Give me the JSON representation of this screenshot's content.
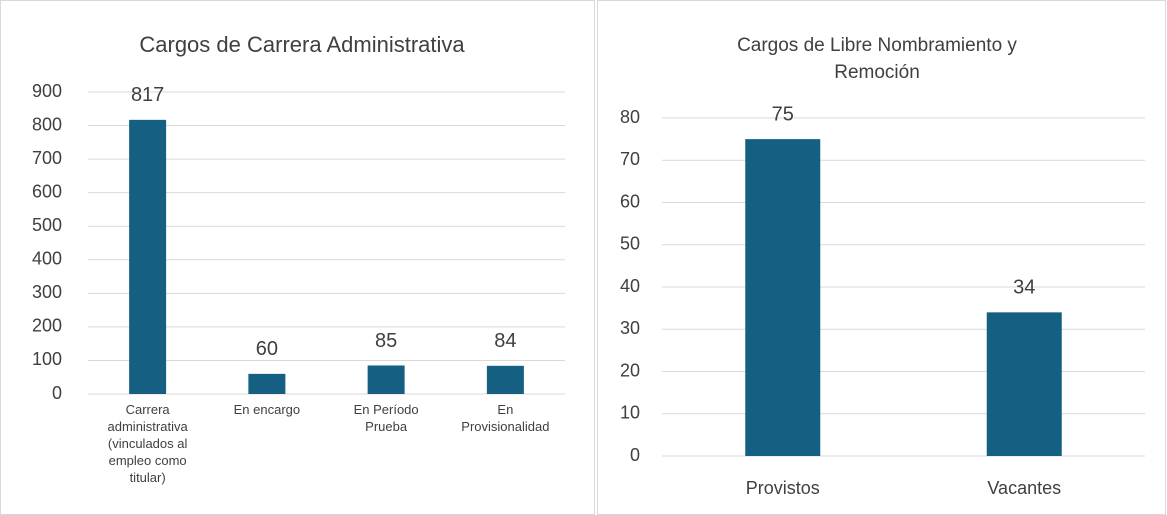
{
  "chart_data": [
    {
      "type": "bar",
      "title": "Cargos de Carrera Administrativa",
      "categories": [
        "Carrera administrativa (vinculados al empleo como titular)",
        "En encargo",
        "En Período Prueba",
        "En Provisionalidad"
      ],
      "values": [
        817,
        60,
        85,
        84
      ],
      "color": "#156082",
      "ylim": [
        0,
        900
      ],
      "yticks": [
        0,
        100,
        200,
        300,
        400,
        500,
        600,
        700,
        800,
        900
      ],
      "grid": true
    },
    {
      "type": "bar",
      "title": "Cargos de Libre Nombramiento y Remoción",
      "categories": [
        "Provistos",
        "Vacantes"
      ],
      "values": [
        75,
        34
      ],
      "color": "#156082",
      "ylim": [
        0,
        80
      ],
      "yticks": [
        0,
        10,
        20,
        30,
        40,
        50,
        60,
        70,
        80
      ],
      "grid": true
    }
  ]
}
